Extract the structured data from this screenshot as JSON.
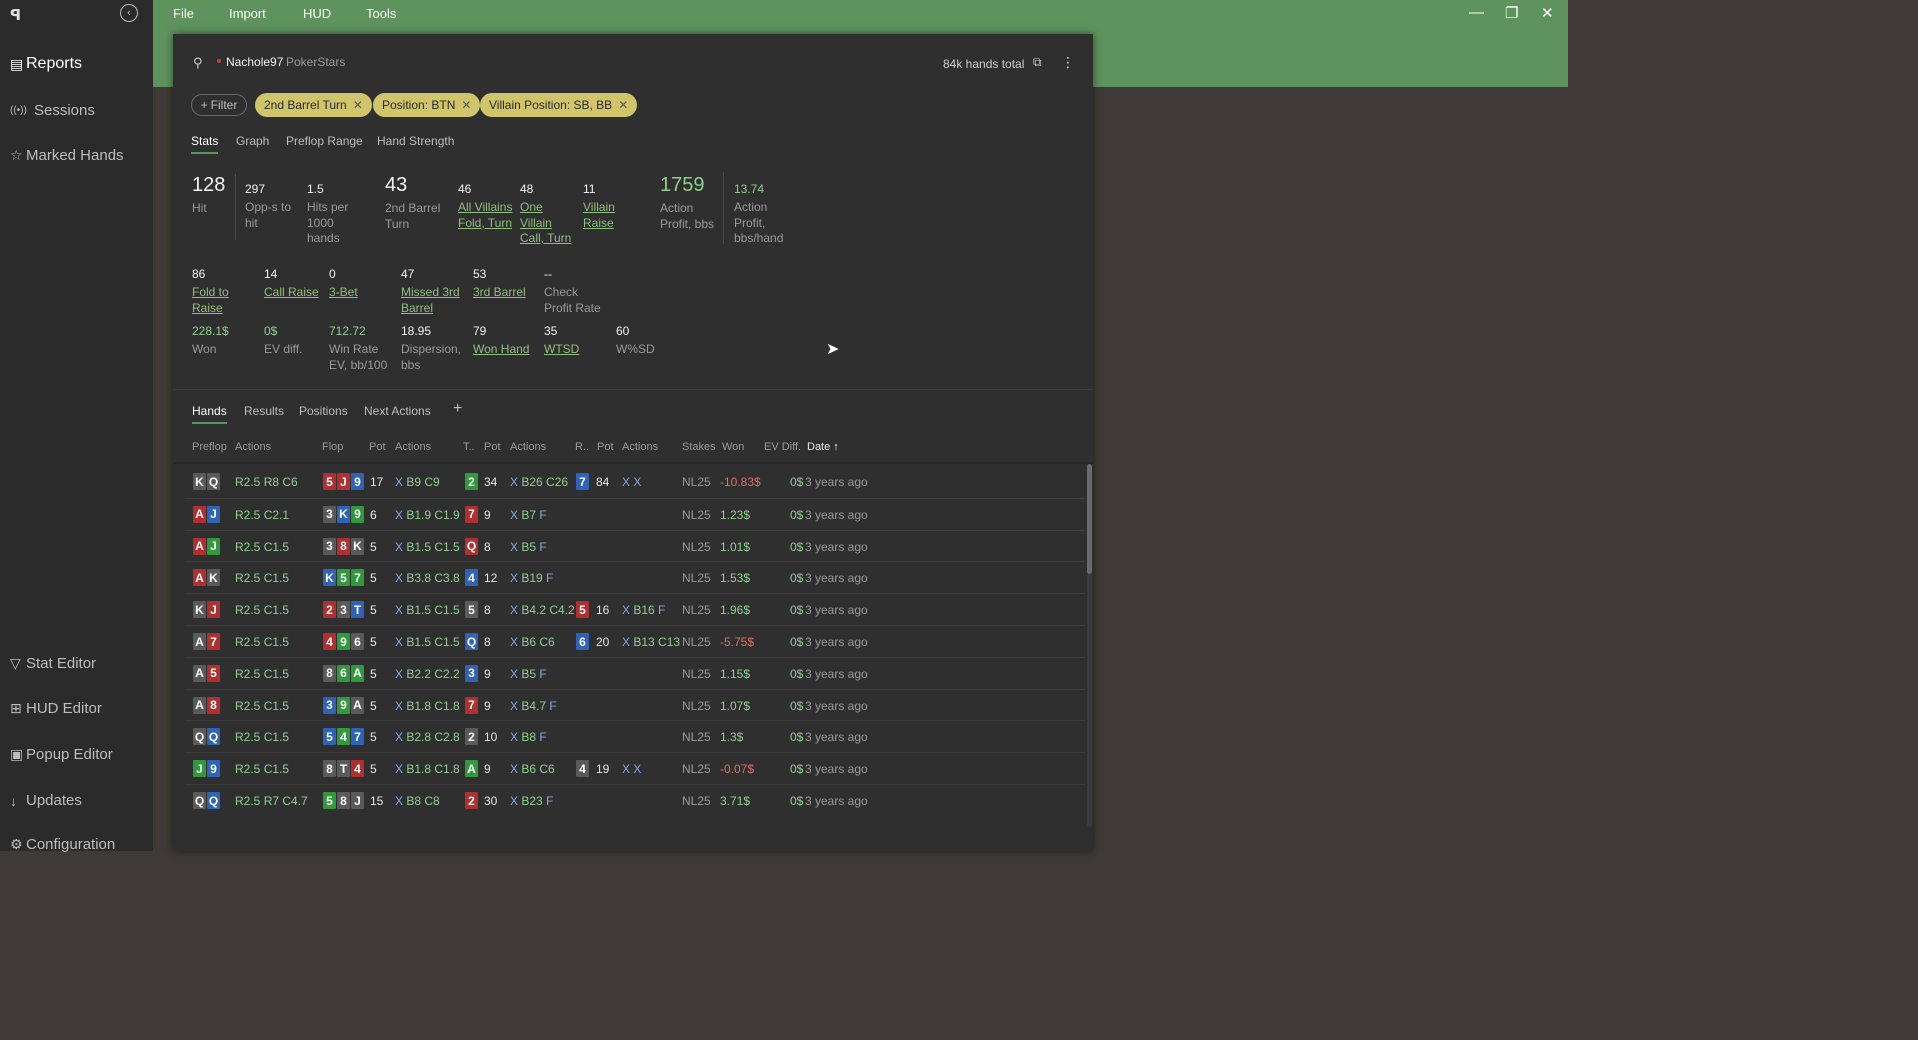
{
  "app": {
    "logo": "ꟼ"
  },
  "sidebar": {
    "items": [
      {
        "label": "Reports",
        "icon": "report-icon"
      },
      {
        "label": "Sessions",
        "icon": "broadcast-icon"
      },
      {
        "label": "Marked Hands",
        "icon": "star-icon"
      },
      {
        "label": "Stat Editor",
        "icon": "filter-icon"
      },
      {
        "label": "HUD Editor",
        "icon": "hud-icon"
      },
      {
        "label": "Popup Editor",
        "icon": "popup-icon"
      },
      {
        "label": "Updates",
        "icon": "download-icon"
      },
      {
        "label": "Configuration",
        "icon": "gear-icon"
      }
    ]
  },
  "menu": {
    "file": "File",
    "import": "Import",
    "hud": "HUD",
    "tools": "Tools"
  },
  "header": {
    "username": "Nachole97",
    "site": "PokerStars",
    "hands_total": "84k hands total"
  },
  "filters": {
    "filter_label": "Filter",
    "chips": [
      "2nd Barrel Turn",
      "Position: BTN",
      "Villain Position: SB, BB"
    ]
  },
  "stat_tabs": [
    "Stats",
    "Graph",
    "Preflop Range",
    "Hand Strength"
  ],
  "stats": {
    "hit": {
      "v": "128",
      "l": "Hit"
    },
    "opps": {
      "v": "297",
      "l": "Opp-s to hit"
    },
    "hits_per": {
      "v": "1.5",
      "l": "Hits per 1000 hands"
    },
    "barrel2": {
      "v": "43",
      "l": "2nd Barrel Turn"
    },
    "allv": {
      "v": "46",
      "l": "All Villains Fold, Turn"
    },
    "onev": {
      "v": "48",
      "l": "One Villain Call, Turn"
    },
    "vraise": {
      "v": "11",
      "l": "Villain Raise"
    },
    "aprofit": {
      "v": "1759",
      "l": "Action Profit, bbs"
    },
    "aprofit_h": {
      "v": "13.74",
      "l": "Action Profit, bbs/hand"
    },
    "ftr": {
      "v": "86",
      "l": "Fold to Raise"
    },
    "cr": {
      "v": "14",
      "l": "Call Raise"
    },
    "bet3": {
      "v": "0",
      "l": "3-Bet"
    },
    "missed3": {
      "v": "47",
      "l": "Missed 3rd Barrel"
    },
    "barrel3": {
      "v": "53",
      "l": "3rd Barrel"
    },
    "checkp": {
      "v": "--",
      "l": "Check Profit Rate"
    },
    "won": {
      "v": "228.1$",
      "l": "Won"
    },
    "evdiff": {
      "v": "0$",
      "l": "EV diff."
    },
    "winrate": {
      "v": "712.72",
      "l": "Win Rate EV, bb/100"
    },
    "disp": {
      "v": "18.95",
      "l": "Dispersion, bbs"
    },
    "wonhand": {
      "v": "79",
      "l": "Won Hand"
    },
    "wtsd": {
      "v": "35",
      "l": "WTSD"
    },
    "wsd": {
      "v": "60",
      "l": "W%SD"
    }
  },
  "hand_tabs": [
    "Hands",
    "Results",
    "Positions",
    "Next Actions"
  ],
  "add_tab": "+",
  "columns": [
    "Preflop",
    "Actions",
    "Flop",
    "Pot",
    "Actions",
    "T..",
    "Pot",
    "Actions",
    "R..",
    "Pot",
    "Actions",
    "Stakes",
    "Won",
    "EV Diff.",
    "Date ↑"
  ],
  "hands": [
    {
      "hole": [
        [
          "K",
          "s"
        ],
        [
          "Q",
          "s"
        ]
      ],
      "pf": "R2.5 R8 C6",
      "flop": [
        [
          "5",
          "h"
        ],
        [
          "J",
          "h"
        ],
        [
          "9",
          "d"
        ]
      ],
      "fpot": "17",
      "fact": "X B9 C9",
      "turn": [
        "2",
        "c"
      ],
      "tpot": "34",
      "tact": "X B26 C26",
      "river": [
        "7",
        "d"
      ],
      "rpot": "84",
      "ract": "X X",
      "stakes": "NL25",
      "won": "-10.83$",
      "neg": true,
      "ev": "0$",
      "date": "3 years ago"
    },
    {
      "hole": [
        [
          "A",
          "h"
        ],
        [
          "J",
          "d"
        ]
      ],
      "pf": "R2.5 C2.1",
      "flop": [
        [
          "3",
          "s"
        ],
        [
          "K",
          "d"
        ],
        [
          "9",
          "c"
        ]
      ],
      "fpot": "6",
      "fact": "X B1.9 C1.9",
      "turn": [
        "7",
        "h"
      ],
      "tpot": "9",
      "tact": "X B7 F",
      "river": null,
      "rpot": "",
      "ract": "",
      "stakes": "NL25",
      "won": "1.23$",
      "neg": false,
      "ev": "0$",
      "date": "3 years ago"
    },
    {
      "hole": [
        [
          "A",
          "h"
        ],
        [
          "J",
          "c"
        ]
      ],
      "pf": "R2.5 C1.5",
      "flop": [
        [
          "3",
          "s"
        ],
        [
          "8",
          "h"
        ],
        [
          "K",
          "s"
        ]
      ],
      "fpot": "5",
      "fact": "X B1.5 C1.5",
      "turn": [
        "Q",
        "h"
      ],
      "tpot": "8",
      "tact": "X B5 F",
      "river": null,
      "rpot": "",
      "ract": "",
      "stakes": "NL25",
      "won": "1.01$",
      "neg": false,
      "ev": "0$",
      "date": "3 years ago"
    },
    {
      "hole": [
        [
          "A",
          "h"
        ],
        [
          "K",
          "s"
        ]
      ],
      "pf": "R2.5 C1.5",
      "flop": [
        [
          "K",
          "d"
        ],
        [
          "5",
          "c"
        ],
        [
          "7",
          "c"
        ]
      ],
      "fpot": "5",
      "fact": "X B3.8 C3.8",
      "turn": [
        "4",
        "d"
      ],
      "tpot": "12",
      "tact": "X B19 F",
      "river": null,
      "rpot": "",
      "ract": "",
      "stakes": "NL25",
      "won": "1.53$",
      "neg": false,
      "ev": "0$",
      "date": "3 years ago"
    },
    {
      "hole": [
        [
          "K",
          "s"
        ],
        [
          "J",
          "h"
        ]
      ],
      "pf": "R2.5 C1.5",
      "flop": [
        [
          "2",
          "h"
        ],
        [
          "3",
          "s"
        ],
        [
          "T",
          "d"
        ]
      ],
      "fpot": "5",
      "fact": "X B1.5 C1.5",
      "turn": [
        "5",
        "s"
      ],
      "tpot": "8",
      "tact": "X B4.2 C4.2",
      "river": [
        "5",
        "h"
      ],
      "rpot": "16",
      "ract": "X B16 F",
      "stakes": "NL25",
      "won": "1.96$",
      "neg": false,
      "ev": "0$",
      "date": "3 years ago"
    },
    {
      "hole": [
        [
          "A",
          "s"
        ],
        [
          "7",
          "h"
        ]
      ],
      "pf": "R2.5 C1.5",
      "flop": [
        [
          "4",
          "h"
        ],
        [
          "9",
          "c"
        ],
        [
          "6",
          "s"
        ]
      ],
      "fpot": "5",
      "fact": "X B1.5 C1.5",
      "turn": [
        "Q",
        "d"
      ],
      "tpot": "8",
      "tact": "X B6 C6",
      "river": [
        "6",
        "d"
      ],
      "rpot": "20",
      "ract": "X B13 C13",
      "stakes": "NL25",
      "won": "-5.75$",
      "neg": true,
      "ev": "0$",
      "date": "3 years ago"
    },
    {
      "hole": [
        [
          "A",
          "s"
        ],
        [
          "5",
          "h"
        ]
      ],
      "pf": "R2.5 C1.5",
      "flop": [
        [
          "8",
          "s"
        ],
        [
          "6",
          "c"
        ],
        [
          "A",
          "c"
        ]
      ],
      "fpot": "5",
      "fact": "X B2.2 C2.2",
      "turn": [
        "3",
        "d"
      ],
      "tpot": "9",
      "tact": "X B5 F",
      "river": null,
      "rpot": "",
      "ract": "",
      "stakes": "NL25",
      "won": "1.15$",
      "neg": false,
      "ev": "0$",
      "date": "3 years ago"
    },
    {
      "hole": [
        [
          "A",
          "s"
        ],
        [
          "8",
          "h"
        ]
      ],
      "pf": "R2.5 C1.5",
      "flop": [
        [
          "3",
          "d"
        ],
        [
          "9",
          "c"
        ],
        [
          "A",
          "s"
        ]
      ],
      "fpot": "5",
      "fact": "X B1.8 C1.8",
      "turn": [
        "7",
        "h"
      ],
      "tpot": "9",
      "tact": "X B4.7 F",
      "river": null,
      "rpot": "",
      "ract": "",
      "stakes": "NL25",
      "won": "1.07$",
      "neg": false,
      "ev": "0$",
      "date": "3 years ago"
    },
    {
      "hole": [
        [
          "Q",
          "s"
        ],
        [
          "Q",
          "d"
        ]
      ],
      "pf": "R2.5 C1.5",
      "flop": [
        [
          "5",
          "d"
        ],
        [
          "4",
          "c"
        ],
        [
          "7",
          "d"
        ]
      ],
      "fpot": "5",
      "fact": "X B2.8 C2.8",
      "turn": [
        "2",
        "s"
      ],
      "tpot": "10",
      "tact": "X B8 F",
      "river": null,
      "rpot": "",
      "ract": "",
      "stakes": "NL25",
      "won": "1.3$",
      "neg": false,
      "ev": "0$",
      "date": "3 years ago"
    },
    {
      "hole": [
        [
          "J",
          "c"
        ],
        [
          "9",
          "d"
        ]
      ],
      "pf": "R2.5 C1.5",
      "flop": [
        [
          "8",
          "s"
        ],
        [
          "T",
          "s"
        ],
        [
          "4",
          "h"
        ]
      ],
      "fpot": "5",
      "fact": "X B1.8 C1.8",
      "turn": [
        "A",
        "c"
      ],
      "tpot": "9",
      "tact": "X B6 C6",
      "river": [
        "4",
        "s"
      ],
      "rpot": "19",
      "ract": "X X",
      "stakes": "NL25",
      "won": "-0.07$",
      "neg": true,
      "ev": "0$",
      "date": "3 years ago"
    },
    {
      "hole": [
        [
          "Q",
          "s"
        ],
        [
          "Q",
          "d"
        ]
      ],
      "pf": "R2.5 R7 C4.7",
      "flop": [
        [
          "5",
          "c"
        ],
        [
          "8",
          "s"
        ],
        [
          "J",
          "s"
        ]
      ],
      "fpot": "15",
      "fact": "X B8 C8",
      "turn": [
        "2",
        "h"
      ],
      "tpot": "30",
      "tact": "X B23 F",
      "river": null,
      "rpot": "",
      "ract": "",
      "stakes": "NL25",
      "won": "3.71$",
      "neg": false,
      "ev": "0$",
      "date": "3 years ago"
    }
  ]
}
